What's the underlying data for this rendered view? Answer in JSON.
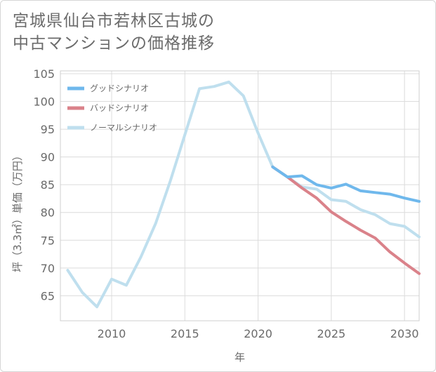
{
  "title": "宮城県仙台市若林区古城の\n中古マンションの価格推移",
  "chart_data": {
    "type": "line",
    "xlabel": "年",
    "ylabel": "坪（3.3㎡）単価（万円）",
    "xlim": [
      2006.5,
      2031
    ],
    "ylim": [
      60.5,
      105.5
    ],
    "xticks": [
      2010,
      2015,
      2020,
      2025,
      2030
    ],
    "yticks": [
      65,
      70,
      75,
      80,
      85,
      90,
      95,
      100,
      105
    ],
    "grid": true,
    "legend_position": "top-left",
    "series": [
      {
        "name": "グッドシナリオ",
        "color": "#6fb8ec",
        "x": [
          2021,
          2022,
          2023,
          2024,
          2025,
          2026,
          2027,
          2028,
          2029,
          2030,
          2031
        ],
        "y": [
          88.2,
          86.4,
          86.6,
          85.0,
          84.4,
          85.1,
          83.9,
          83.6,
          83.3,
          82.6,
          82.0
        ]
      },
      {
        "name": "バッドシナリオ",
        "color": "#da828a",
        "x": [
          2021,
          2022,
          2023,
          2024,
          2025,
          2026,
          2027,
          2028,
          2029,
          2030,
          2031
        ],
        "y": [
          88.2,
          86.4,
          84.4,
          82.6,
          80.1,
          78.4,
          76.8,
          75.4,
          72.9,
          70.9,
          69.0
        ]
      },
      {
        "name": "ノーマルシナリオ",
        "color": "#bfdfee",
        "x": [
          2007,
          2008,
          2009,
          2010,
          2011,
          2012,
          2013,
          2014,
          2015,
          2016,
          2017,
          2018,
          2019,
          2020,
          2021,
          2022,
          2023,
          2024,
          2025,
          2026,
          2027,
          2028,
          2029,
          2030,
          2031
        ],
        "y": [
          69.6,
          65.6,
          63.0,
          68.0,
          66.9,
          72.0,
          78.0,
          85.6,
          94.0,
          102.3,
          102.7,
          103.5,
          101.0,
          94.3,
          88.2,
          86.4,
          84.6,
          84.2,
          82.3,
          82.0,
          80.5,
          79.6,
          78.0,
          77.5,
          75.6
        ]
      }
    ]
  }
}
